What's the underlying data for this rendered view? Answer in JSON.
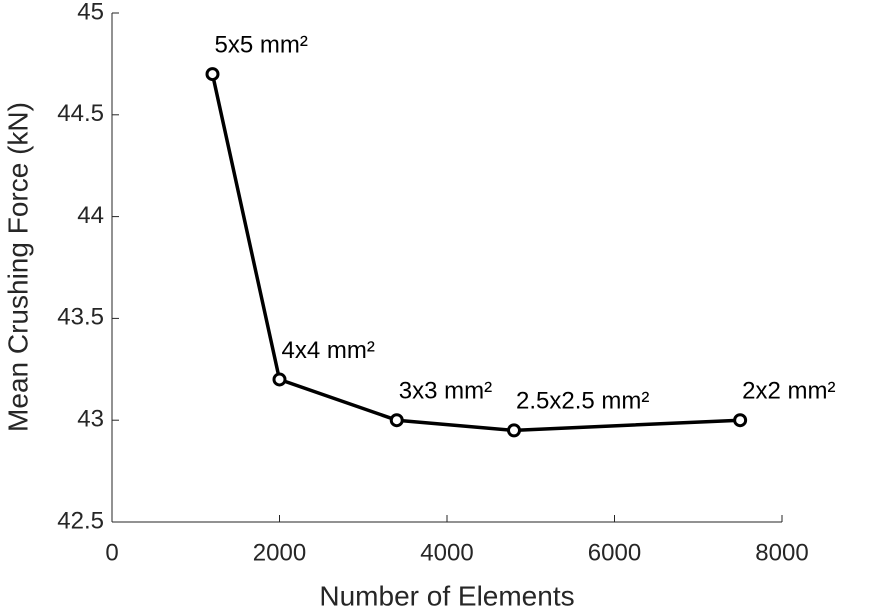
{
  "chart_data": {
    "type": "line",
    "x_label": "Number of Elements",
    "y_label": "Mean Crushing Force (kN)",
    "xlim": [
      0,
      8000
    ],
    "ylim": [
      42.5,
      45
    ],
    "xticks": [
      0,
      2000,
      4000,
      6000,
      8000
    ],
    "yticks": [
      42.5,
      43,
      43.5,
      44,
      44.5,
      45
    ],
    "grid": false,
    "series": [
      {
        "color": "#000000",
        "marker": "circle",
        "x": [
          1200,
          2000,
          3400,
          4800,
          7500
        ],
        "values": [
          44.7,
          43.2,
          43.0,
          42.95,
          43.0
        ],
        "point_labels": [
          "5x5 mm²",
          "4x4 mm²",
          "3x3 mm²",
          "2.5x2.5 mm²",
          "2x2 mm²"
        ]
      }
    ]
  }
}
